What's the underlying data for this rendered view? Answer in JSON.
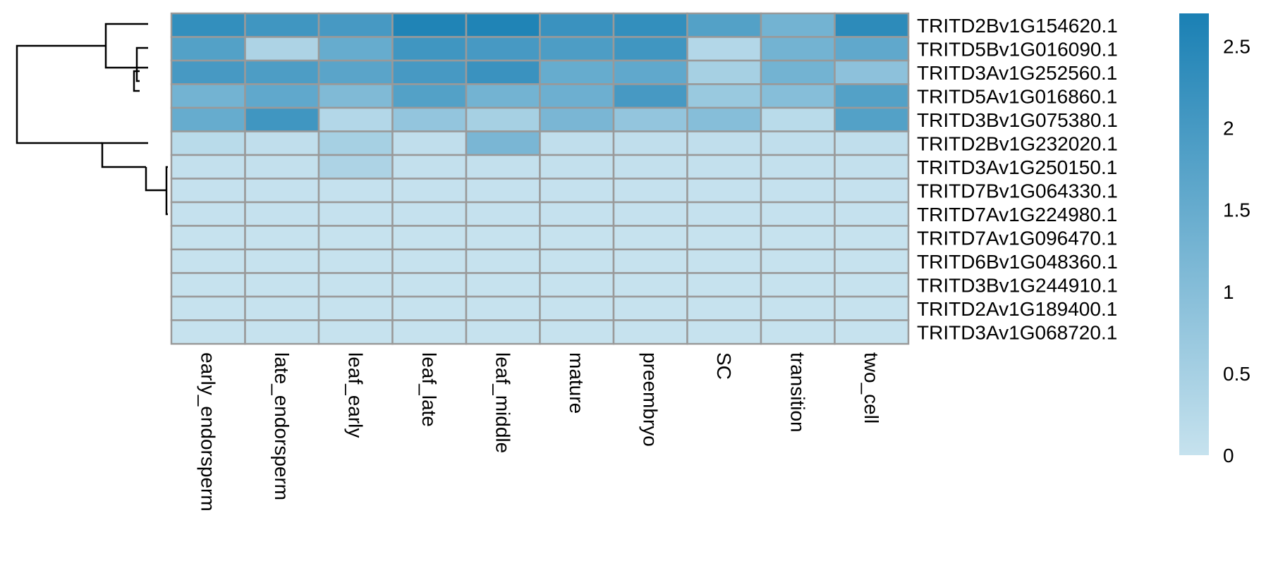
{
  "chart_data": {
    "type": "heatmap",
    "columns": [
      "early_endorsperm",
      "late_endorsperm",
      "leaf_early",
      "leaf_late",
      "leaf_middle",
      "mature",
      "preembryo",
      "SC",
      "transition",
      "two_cell"
    ],
    "rows": [
      "TRITD2Bv1G154620.1",
      "TRITD5Bv1G016090.1",
      "TRITD3Av1G252560.1",
      "TRITD5Av1G016860.1",
      "TRITD3Bv1G075380.1",
      "TRITD2Bv1G232020.1",
      "TRITD3Av1G250150.1",
      "TRITD7Bv1G064330.1",
      "TRITD7Av1G224980.1",
      "TRITD7Av1G096470.1",
      "TRITD6Bv1G048360.1",
      "TRITD3Bv1G244910.1",
      "TRITD2Av1G189400.1",
      "TRITD3Av1G068720.1"
    ],
    "values": [
      [
        2.3,
        2.1,
        2.0,
        2.6,
        2.6,
        2.2,
        2.3,
        1.8,
        1.3,
        2.4
      ],
      [
        1.8,
        0.4,
        1.5,
        2.1,
        2.0,
        1.9,
        2.1,
        0.3,
        1.3,
        1.6
      ],
      [
        2.0,
        1.9,
        1.7,
        2.0,
        2.2,
        1.5,
        1.6,
        0.5,
        1.3,
        0.9
      ],
      [
        1.3,
        1.6,
        1.1,
        1.8,
        1.3,
        1.4,
        2.0,
        0.7,
        1.0,
        1.8
      ],
      [
        1.5,
        2.1,
        0.3,
        0.8,
        0.5,
        1.2,
        0.8,
        1.0,
        0.2,
        1.8
      ],
      [
        0.2,
        0.1,
        0.5,
        0.1,
        1.2,
        0.1,
        0.1,
        0.1,
        0.1,
        0.1
      ],
      [
        0.05,
        0.05,
        0.4,
        0.05,
        0.05,
        0.05,
        0.05,
        0.05,
        0.05,
        0.05
      ],
      [
        0.02,
        0.02,
        0.02,
        0.02,
        0.02,
        0.02,
        0.02,
        0.02,
        0.02,
        0.02
      ],
      [
        0.02,
        0.02,
        0.02,
        0.02,
        0.02,
        0.02,
        0.02,
        0.02,
        0.02,
        0.02
      ],
      [
        0.0,
        0.0,
        0.0,
        0.0,
        0.0,
        0.0,
        0.0,
        0.0,
        0.0,
        0.0
      ],
      [
        0.0,
        0.0,
        0.0,
        0.0,
        0.0,
        0.0,
        0.0,
        0.0,
        0.0,
        0.0
      ],
      [
        0.0,
        0.0,
        0.0,
        0.0,
        0.0,
        0.0,
        0.0,
        0.0,
        0.0,
        0.0
      ],
      [
        0.0,
        0.0,
        0.0,
        0.0,
        0.0,
        0.0,
        0.0,
        0.0,
        0.0,
        0.0
      ],
      [
        0.0,
        0.0,
        0.0,
        0.0,
        0.0,
        0.0,
        0.0,
        0.0,
        0.0,
        0.0
      ]
    ],
    "color_scale": {
      "min": 0,
      "max": 2.7,
      "low_color": "#c6e2ee",
      "high_color": "#1a80b4",
      "ticks": [
        0,
        0.5,
        1,
        1.5,
        2,
        2.5
      ]
    },
    "legend_position": "right",
    "cell_border_color": "#999999",
    "row_dendrogram": true
  }
}
